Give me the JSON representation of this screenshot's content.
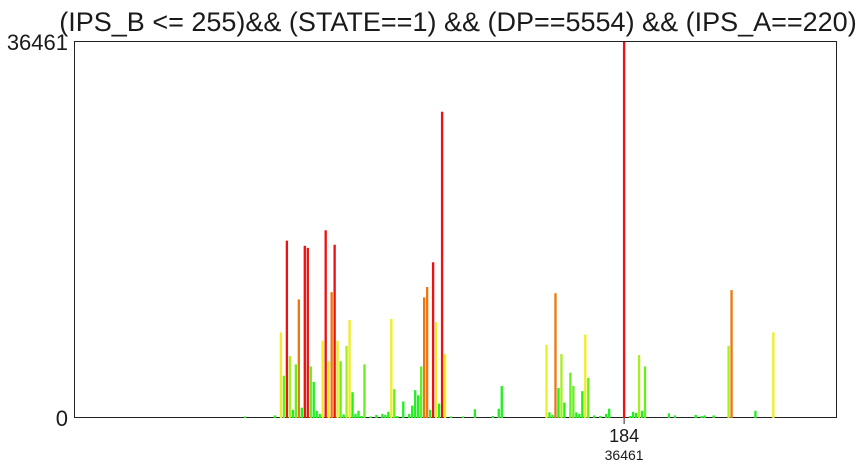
{
  "chart_data": {
    "type": "bar",
    "title": "(IPS_B <= 255)&& (STATE==1) && (DP==5554) && (IPS_A==220)",
    "xlabel": "",
    "ylabel": "",
    "ylim": [
      0,
      36461
    ],
    "xlim": [
      0,
      255
    ],
    "y_tick_labels": [
      "36461",
      "0"
    ],
    "x_marker": {
      "value": 184,
      "label": "184",
      "sublabel": "36461"
    },
    "grid": false,
    "legend": "none",
    "bars": [
      {
        "x": 57,
        "y": 150,
        "color": "#22ee22"
      },
      {
        "x": 67,
        "y": 250,
        "color": "#22ee22"
      },
      {
        "x": 69,
        "y": 8300,
        "color": "#eeee22"
      },
      {
        "x": 70,
        "y": 4100,
        "color": "#66ee22"
      },
      {
        "x": 71,
        "y": 17200,
        "color": "#ee1111"
      },
      {
        "x": 72,
        "y": 6000,
        "color": "#aaee22"
      },
      {
        "x": 73,
        "y": 800,
        "color": "#22ee22"
      },
      {
        "x": 74,
        "y": 5200,
        "color": "#66ee22"
      },
      {
        "x": 75,
        "y": 11500,
        "color": "#ee7711"
      },
      {
        "x": 76,
        "y": 1000,
        "color": "#22ee22"
      },
      {
        "x": 77,
        "y": 16700,
        "color": "#ee1111"
      },
      {
        "x": 78,
        "y": 16500,
        "color": "#ee1111"
      },
      {
        "x": 79,
        "y": 5000,
        "color": "#66ee22"
      },
      {
        "x": 80,
        "y": 3500,
        "color": "#22ee22"
      },
      {
        "x": 81,
        "y": 700,
        "color": "#22ee22"
      },
      {
        "x": 82,
        "y": 400,
        "color": "#22ee22"
      },
      {
        "x": 83,
        "y": 7500,
        "color": "#eeee22"
      },
      {
        "x": 84,
        "y": 18200,
        "color": "#ee1111"
      },
      {
        "x": 85,
        "y": 5500,
        "color": "#eeee22"
      },
      {
        "x": 86,
        "y": 12200,
        "color": "#ee7711"
      },
      {
        "x": 87,
        "y": 16800,
        "color": "#ee1111"
      },
      {
        "x": 88,
        "y": 7500,
        "color": "#eeee22"
      },
      {
        "x": 89,
        "y": 5500,
        "color": "#66ee22"
      },
      {
        "x": 90,
        "y": 350,
        "color": "#22ee22"
      },
      {
        "x": 91,
        "y": 7000,
        "color": "#aaee22"
      },
      {
        "x": 92,
        "y": 9500,
        "color": "#eeee22"
      },
      {
        "x": 93,
        "y": 2500,
        "color": "#22ee22"
      },
      {
        "x": 94,
        "y": 400,
        "color": "#22ee22"
      },
      {
        "x": 95,
        "y": 700,
        "color": "#22ee22"
      },
      {
        "x": 96,
        "y": 200,
        "color": "#22ee22"
      },
      {
        "x": 97,
        "y": 5200,
        "color": "#66ee22"
      },
      {
        "x": 99,
        "y": 150,
        "color": "#22ee22"
      },
      {
        "x": 101,
        "y": 300,
        "color": "#22ee22"
      },
      {
        "x": 103,
        "y": 400,
        "color": "#22ee22"
      },
      {
        "x": 104,
        "y": 300,
        "color": "#22ee22"
      },
      {
        "x": 105,
        "y": 600,
        "color": "#22ee22"
      },
      {
        "x": 106,
        "y": 9600,
        "color": "#eeee22"
      },
      {
        "x": 107,
        "y": 2800,
        "color": "#66ee22"
      },
      {
        "x": 108,
        "y": 200,
        "color": "#22ee22"
      },
      {
        "x": 110,
        "y": 1600,
        "color": "#22ee22"
      },
      {
        "x": 112,
        "y": 400,
        "color": "#22ee22"
      },
      {
        "x": 113,
        "y": 1200,
        "color": "#22ee22"
      },
      {
        "x": 114,
        "y": 2700,
        "color": "#22ee22"
      },
      {
        "x": 115,
        "y": 2200,
        "color": "#22ee22"
      },
      {
        "x": 116,
        "y": 5000,
        "color": "#66ee22"
      },
      {
        "x": 117,
        "y": 11700,
        "color": "#ee7711"
      },
      {
        "x": 118,
        "y": 12700,
        "color": "#ee7711"
      },
      {
        "x": 119,
        "y": 800,
        "color": "#22ee22"
      },
      {
        "x": 120,
        "y": 15100,
        "color": "#ee1111"
      },
      {
        "x": 121,
        "y": 9300,
        "color": "#eeee22"
      },
      {
        "x": 122,
        "y": 1400,
        "color": "#22ee22"
      },
      {
        "x": 123,
        "y": 29700,
        "color": "#ee1111"
      },
      {
        "x": 124,
        "y": 6200,
        "color": "#eeee22"
      },
      {
        "x": 126,
        "y": 150,
        "color": "#22ee22"
      },
      {
        "x": 130,
        "y": 150,
        "color": "#22ee22"
      },
      {
        "x": 134,
        "y": 850,
        "color": "#22ee22"
      },
      {
        "x": 140,
        "y": 200,
        "color": "#22ee22"
      },
      {
        "x": 142,
        "y": 900,
        "color": "#22ee22"
      },
      {
        "x": 143,
        "y": 3100,
        "color": "#22ee22"
      },
      {
        "x": 158,
        "y": 7100,
        "color": "#eeee22"
      },
      {
        "x": 159,
        "y": 550,
        "color": "#22ee22"
      },
      {
        "x": 160,
        "y": 300,
        "color": "#22ee22"
      },
      {
        "x": 161,
        "y": 12100,
        "color": "#ee7711"
      },
      {
        "x": 162,
        "y": 2900,
        "color": "#22ee22"
      },
      {
        "x": 163,
        "y": 6200,
        "color": "#aaee22"
      },
      {
        "x": 164,
        "y": 1500,
        "color": "#22ee22"
      },
      {
        "x": 166,
        "y": 4400,
        "color": "#66ee22"
      },
      {
        "x": 167,
        "y": 3100,
        "color": "#66ee22"
      },
      {
        "x": 168,
        "y": 550,
        "color": "#22ee22"
      },
      {
        "x": 169,
        "y": 400,
        "color": "#22ee22"
      },
      {
        "x": 170,
        "y": 2600,
        "color": "#22ee22"
      },
      {
        "x": 171,
        "y": 8100,
        "color": "#eeee22"
      },
      {
        "x": 172,
        "y": 3900,
        "color": "#66ee22"
      },
      {
        "x": 174,
        "y": 250,
        "color": "#22ee22"
      },
      {
        "x": 176,
        "y": 200,
        "color": "#22ee22"
      },
      {
        "x": 178,
        "y": 400,
        "color": "#22ee22"
      },
      {
        "x": 179,
        "y": 900,
        "color": "#22ee22"
      },
      {
        "x": 184,
        "y": 36461,
        "color": "#ee1111"
      },
      {
        "x": 186,
        "y": 200,
        "color": "#22ee22"
      },
      {
        "x": 187,
        "y": 600,
        "color": "#22ee22"
      },
      {
        "x": 188,
        "y": 500,
        "color": "#22ee22"
      },
      {
        "x": 189,
        "y": 6100,
        "color": "#aaee22"
      },
      {
        "x": 190,
        "y": 700,
        "color": "#22ee22"
      },
      {
        "x": 191,
        "y": 5000,
        "color": "#66ee22"
      },
      {
        "x": 199,
        "y": 450,
        "color": "#22ee22"
      },
      {
        "x": 201,
        "y": 250,
        "color": "#22ee22"
      },
      {
        "x": 208,
        "y": 300,
        "color": "#22ee22"
      },
      {
        "x": 210,
        "y": 200,
        "color": "#22ee22"
      },
      {
        "x": 211,
        "y": 250,
        "color": "#22ee22"
      },
      {
        "x": 214,
        "y": 250,
        "color": "#22ee22"
      },
      {
        "x": 219,
        "y": 7000,
        "color": "#aaee22"
      },
      {
        "x": 220,
        "y": 12400,
        "color": "#ee7711"
      },
      {
        "x": 228,
        "y": 700,
        "color": "#22ee22"
      },
      {
        "x": 234,
        "y": 8300,
        "color": "#eeee22"
      }
    ]
  }
}
